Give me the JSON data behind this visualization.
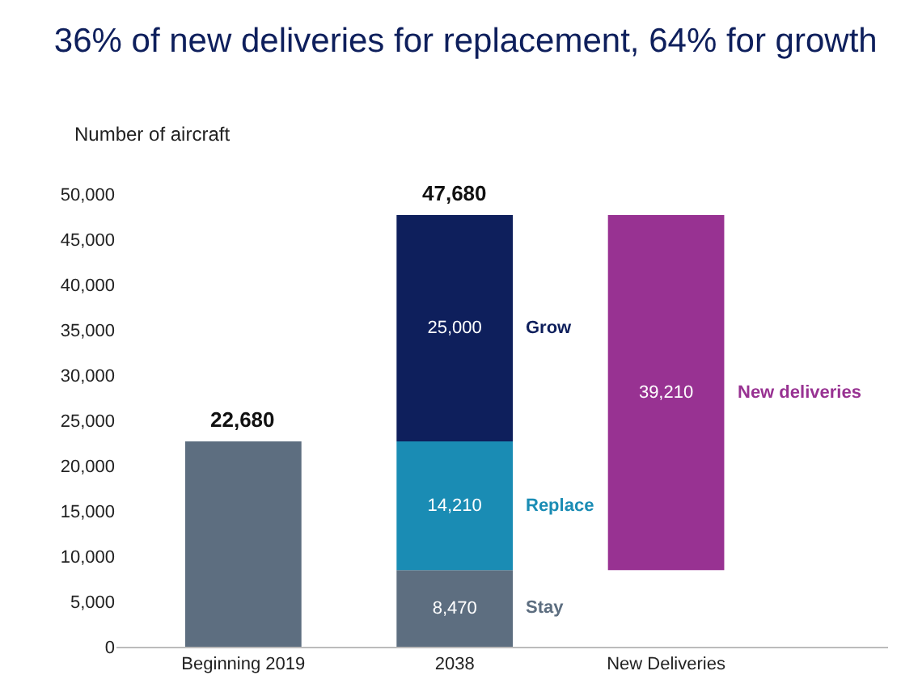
{
  "chart_data": {
    "type": "bar",
    "title": "36% of new deliveries for replacement, 64% for growth",
    "ylabel": "Number of aircraft",
    "categories": [
      "Beginning 2019",
      "2038",
      "New Deliveries"
    ],
    "stacked": true,
    "legend": false,
    "ylim": [
      0,
      50000
    ],
    "yticks": [
      0,
      {
        "value": 5000,
        "label": "5,000"
      },
      {
        "value": 10000,
        "label": "10,000"
      },
      {
        "value": 15000,
        "label": "15,000"
      },
      {
        "value": 20000,
        "label": "20,000"
      },
      {
        "value": 25000,
        "label": "25,000"
      },
      {
        "value": 30000,
        "label": "30,000"
      },
      {
        "value": 35000,
        "label": "35,000"
      },
      {
        "value": 40000,
        "label": "40,000"
      },
      {
        "value": 45000,
        "label": "45,000"
      },
      {
        "value": 50000,
        "label": "50,000"
      }
    ],
    "series": [
      {
        "color": "#5d6e80",
        "values": [
          22680,
          null,
          null
        ]
      },
      {
        "name": "Stay",
        "color": "#5d6e80",
        "values": [
          null,
          8470,
          null
        ],
        "value_labels": [
          null,
          "8,470",
          null
        ]
      },
      {
        "name": "Replace",
        "color": "#1a8cb4",
        "values": [
          null,
          14210,
          null
        ],
        "value_labels": [
          null,
          "14,210",
          null
        ]
      },
      {
        "name": "Grow",
        "color": "#0e1f5c",
        "values": [
          null,
          25000,
          null
        ],
        "value_labels": [
          null,
          "25,000",
          null
        ]
      },
      {
        "name": "New deliveries",
        "color": "#983292",
        "values": [
          null,
          null,
          39210
        ],
        "base": [
          null,
          null,
          8470
        ],
        "value_labels": [
          null,
          null,
          "39,210"
        ]
      }
    ],
    "totals": [
      "22,680",
      "47,680",
      null
    ]
  }
}
